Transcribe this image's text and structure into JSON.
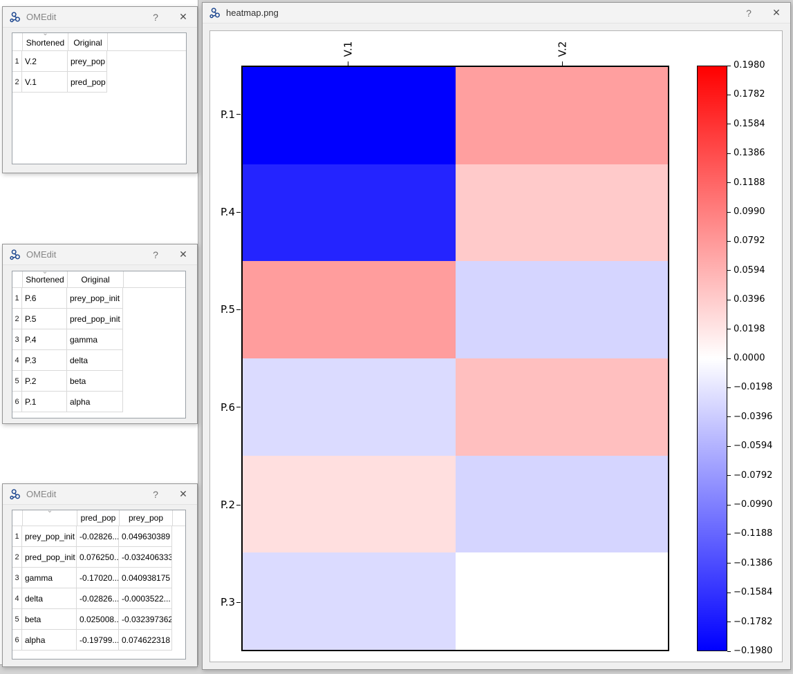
{
  "chrome": {
    "help": "?",
    "close": "✕",
    "sort": "⌄"
  },
  "window1": {
    "title": "OMEdit",
    "columns": {
      "shortened": "Shortened",
      "original": "Original"
    },
    "rows": [
      {
        "num": "1",
        "shortened": "V.2",
        "original": "prey_pop"
      },
      {
        "num": "2",
        "shortened": "V.1",
        "original": "pred_pop"
      }
    ]
  },
  "window2": {
    "title": "OMEdit",
    "columns": {
      "shortened": "Shortened",
      "original": "Original"
    },
    "rows": [
      {
        "num": "1",
        "shortened": "P.6",
        "original": "prey_pop_init"
      },
      {
        "num": "2",
        "shortened": "P.5",
        "original": "pred_pop_init"
      },
      {
        "num": "3",
        "shortened": "P.4",
        "original": "gamma"
      },
      {
        "num": "4",
        "shortened": "P.3",
        "original": "delta"
      },
      {
        "num": "5",
        "shortened": "P.2",
        "original": "beta"
      },
      {
        "num": "6",
        "shortened": "P.1",
        "original": "alpha"
      }
    ]
  },
  "window3": {
    "title": "OMEdit",
    "columns": {
      "name": "",
      "pred_pop": "pred_pop",
      "prey_pop": "prey_pop"
    },
    "rows": [
      {
        "num": "1",
        "name": "prey_pop_init",
        "pred_pop": "-0.02826...",
        "prey_pop": "0.049630389"
      },
      {
        "num": "2",
        "name": "pred_pop_init",
        "pred_pop": "0.076250...",
        "prey_pop": "-0.032406333"
      },
      {
        "num": "3",
        "name": "gamma",
        "pred_pop": "-0.17020...",
        "prey_pop": "0.040938175"
      },
      {
        "num": "4",
        "name": "delta",
        "pred_pop": "-0.02826...",
        "prey_pop": "-0.0003522..."
      },
      {
        "num": "5",
        "name": "beta",
        "pred_pop": "0.025008...",
        "prey_pop": "-0.032397362"
      },
      {
        "num": "6",
        "name": "alpha",
        "pred_pop": "-0.19799...",
        "prey_pop": "0.074622318"
      }
    ]
  },
  "heatmap_window": {
    "title": "heatmap.png"
  },
  "chart_data": {
    "type": "heatmap",
    "title": "",
    "columns": [
      "V.1",
      "V.2"
    ],
    "rows": [
      "P.1",
      "P.4",
      "P.5",
      "P.6",
      "P.2",
      "P.3"
    ],
    "values": [
      [
        -0.19799,
        0.074622318
      ],
      [
        -0.1702,
        0.040938175
      ],
      [
        0.07625,
        -0.032406333
      ],
      [
        -0.02826,
        0.049630389
      ],
      [
        0.025008,
        -0.032397362
      ],
      [
        -0.02826,
        -0.0003522
      ]
    ],
    "vmin": -0.198,
    "vmax": 0.198,
    "colormap": "bwr",
    "legend_position": "right",
    "colorbar_ticks": [
      0.198,
      0.1782,
      0.1584,
      0.1386,
      0.1188,
      0.099,
      0.0792,
      0.0594,
      0.0396,
      0.0198,
      0.0,
      -0.0198,
      -0.0396,
      -0.0594,
      -0.0792,
      -0.099,
      -0.1188,
      -0.1386,
      -0.1584,
      -0.1782,
      -0.198
    ],
    "colorbar_tick_labels": [
      "0.1980",
      "0.1782",
      "0.1584",
      "0.1386",
      "0.1188",
      "0.0990",
      "0.0792",
      "0.0594",
      "0.0396",
      "0.0198",
      "0.0000",
      "−0.0198",
      "−0.0396",
      "−0.0594",
      "−0.0792",
      "−0.0990",
      "−0.1188",
      "−0.1386",
      "−0.1584",
      "−0.1782",
      "−0.1980"
    ]
  }
}
